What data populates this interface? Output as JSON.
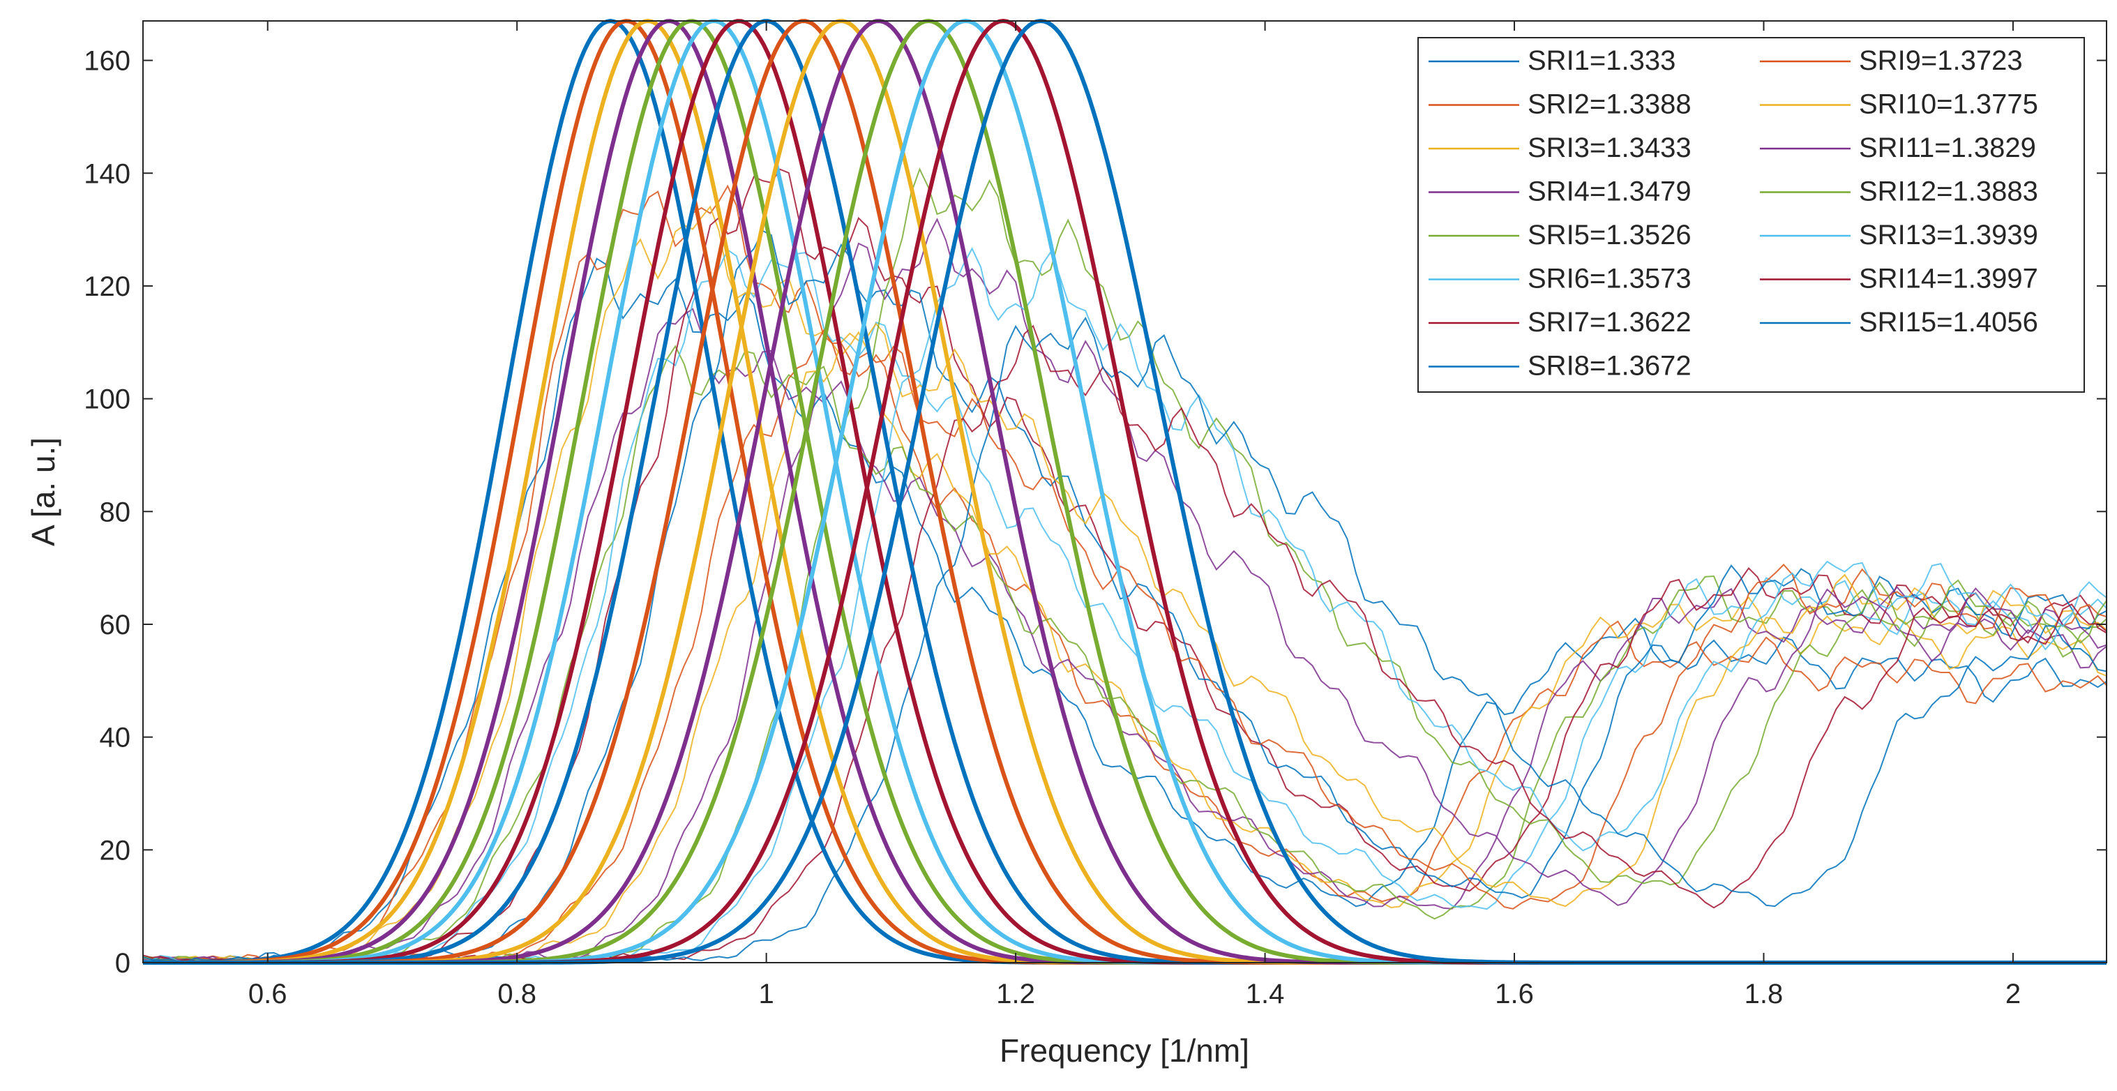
{
  "chart_data": {
    "type": "line",
    "title": "",
    "xlabel": "Frequency [1/nm]",
    "ylabel": "A [a. u.]",
    "xlim": [
      0.5,
      2.075
    ],
    "ylim": [
      0,
      167
    ],
    "xticks": [
      0.6,
      0.8,
      1.0,
      1.2,
      1.4,
      1.6,
      1.8,
      2.0
    ],
    "xtick_labels": [
      "0.6",
      "0.8",
      "1",
      "1.2",
      "1.4",
      "1.6",
      "1.8",
      "2"
    ],
    "yticks": [
      0,
      20,
      40,
      60,
      80,
      100,
      120,
      140,
      160
    ],
    "ytick_labels": [
      "0",
      "20",
      "40",
      "60",
      "80",
      "100",
      "120",
      "140",
      "160"
    ],
    "grid": false,
    "legend_position": "top-right",
    "series": [
      {
        "name": "SRI1=1.333",
        "color": "#0072BD",
        "fit_peak_x": 0.875,
        "fit_peak_y": 167,
        "meas_peak_x": 1.66,
        "meas_peak_y": 56
      },
      {
        "name": "SRI2=1.3388",
        "color": "#D95319",
        "fit_peak_x": 0.888,
        "fit_peak_y": 167,
        "meas_peak_x": 1.68,
        "meas_peak_y": 55
      },
      {
        "name": "SRI3=1.3433",
        "color": "#EDB120",
        "fit_peak_x": 0.905,
        "fit_peak_y": 167,
        "meas_peak_x": 1.7,
        "meas_peak_y": 61
      },
      {
        "name": "SRI4=1.3479",
        "color": "#7E2F8E",
        "fit_peak_x": 0.922,
        "fit_peak_y": 167,
        "meas_peak_x": 1.72,
        "meas_peak_y": 62
      },
      {
        "name": "SRI5=1.3526",
        "color": "#77AC30",
        "fit_peak_x": 0.94,
        "fit_peak_y": 167,
        "meas_peak_x": 1.74,
        "meas_peak_y": 64
      },
      {
        "name": "SRI6=1.3573",
        "color": "#4DBEEE",
        "fit_peak_x": 0.958,
        "fit_peak_y": 167,
        "meas_peak_x": 1.76,
        "meas_peak_y": 65
      },
      {
        "name": "SRI7=1.3622",
        "color": "#A2142F",
        "fit_peak_x": 0.978,
        "fit_peak_y": 167,
        "meas_peak_x": 1.75,
        "meas_peak_y": 66
      },
      {
        "name": "SRI8=1.3672",
        "color": "#0072BD",
        "fit_peak_x": 1.0,
        "fit_peak_y": 167,
        "meas_peak_x": 1.78,
        "meas_peak_y": 66
      },
      {
        "name": "SRI9=1.3723",
        "color": "#D95319",
        "fit_peak_x": 1.03,
        "fit_peak_y": 167,
        "meas_peak_x": 1.81,
        "meas_peak_y": 66
      },
      {
        "name": "SRI10=1.3775",
        "color": "#EDB120",
        "fit_peak_x": 1.06,
        "fit_peak_y": 167,
        "meas_peak_x": 1.84,
        "meas_peak_y": 64
      },
      {
        "name": "SRI11=1.3829",
        "color": "#7E2F8E",
        "fit_peak_x": 1.09,
        "fit_peak_y": 167,
        "meas_peak_x": 1.87,
        "meas_peak_y": 63
      },
      {
        "name": "SRI12=1.3883",
        "color": "#77AC30",
        "fit_peak_x": 1.13,
        "fit_peak_y": 167,
        "meas_peak_x": 1.9,
        "meas_peak_y": 63
      },
      {
        "name": "SRI13=1.3939",
        "color": "#4DBEEE",
        "fit_peak_x": 1.16,
        "fit_peak_y": 167,
        "meas_peak_x": 1.85,
        "meas_peak_y": 66
      },
      {
        "name": "SRI14=1.3997",
        "color": "#A2142F",
        "fit_peak_x": 1.19,
        "fit_peak_y": 167,
        "meas_peak_x": 1.95,
        "meas_peak_y": 60
      },
      {
        "name": "SRI15=1.4056",
        "color": "#0072BD",
        "fit_peak_x": 1.22,
        "fit_peak_y": 167,
        "meas_peak_x": 2.0,
        "meas_peak_y": 55
      }
    ],
    "legend_order": [
      0,
      1,
      2,
      3,
      4,
      5,
      6,
      7,
      8,
      9,
      10,
      11,
      12,
      13,
      14
    ]
  }
}
